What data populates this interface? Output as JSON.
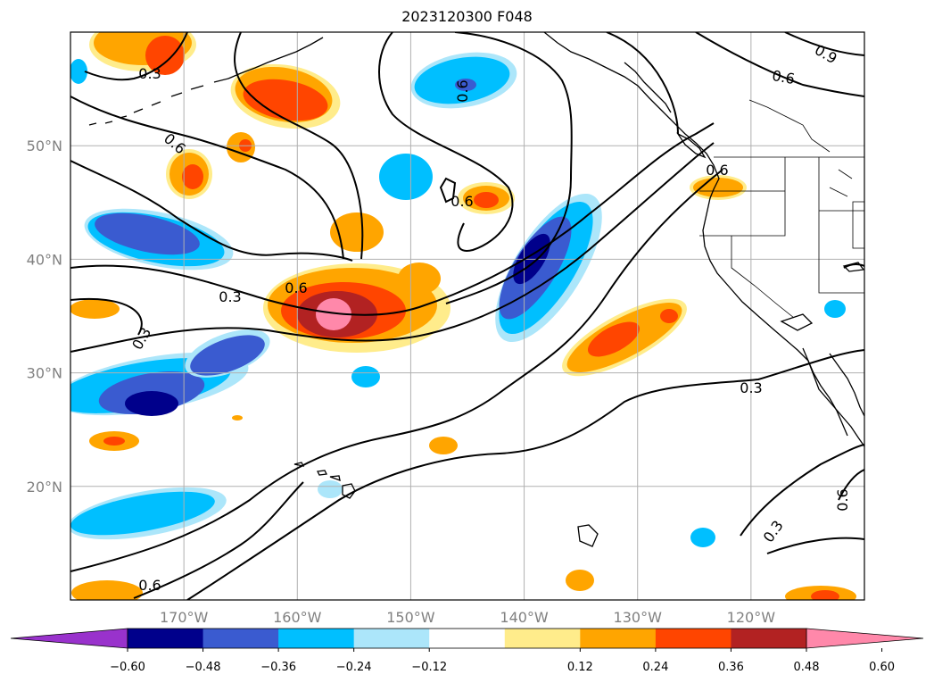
{
  "title": "2023120300 F048",
  "map": {
    "lon_range": [
      -180,
      -110
    ],
    "lat_range": [
      10,
      60
    ],
    "lon_ticks": [
      {
        "value": -170,
        "label": "170°W"
      },
      {
        "value": -160,
        "label": "160°W"
      },
      {
        "value": -150,
        "label": "150°W"
      },
      {
        "value": -140,
        "label": "140°W"
      },
      {
        "value": -130,
        "label": "130°W"
      },
      {
        "value": -120,
        "label": "120°W"
      }
    ],
    "lat_ticks": [
      {
        "value": 50,
        "label": "50°N"
      },
      {
        "value": 40,
        "label": "40°N"
      },
      {
        "value": 30,
        "label": "30°N"
      },
      {
        "value": 20,
        "label": "20°N"
      }
    ],
    "contour_labels": [
      "0.3",
      "0.6",
      "0.6",
      "0.3",
      "0.6",
      "0.3",
      "0.6",
      "0.6",
      "0.6",
      "0.9",
      "0.3",
      "0.6",
      "0.3",
      "0.6"
    ]
  },
  "colorbar": {
    "ticks": [
      "−0.60",
      "−0.48",
      "−0.36",
      "−0.24",
      "−0.12",
      "0.12",
      "0.24",
      "0.36",
      "0.48",
      "0.60"
    ],
    "colors": [
      "#9932cc",
      "#00008b",
      "#3a5bd0",
      "#00bfff",
      "#ace6fa",
      "#ffffff",
      "#ffec8b",
      "#ffa500",
      "#ff4500",
      "#b22222",
      "#ff88aa"
    ],
    "extend": "both"
  },
  "fill_colors": {
    "pos1": "#ffec8b",
    "pos2": "#ffa500",
    "pos3": "#ff4500",
    "pos4": "#b22222",
    "pos5": "#ff88aa",
    "neg1": "#ace6fa",
    "neg2": "#00bfff",
    "neg3": "#3a5bd0",
    "neg4": "#00008b"
  }
}
